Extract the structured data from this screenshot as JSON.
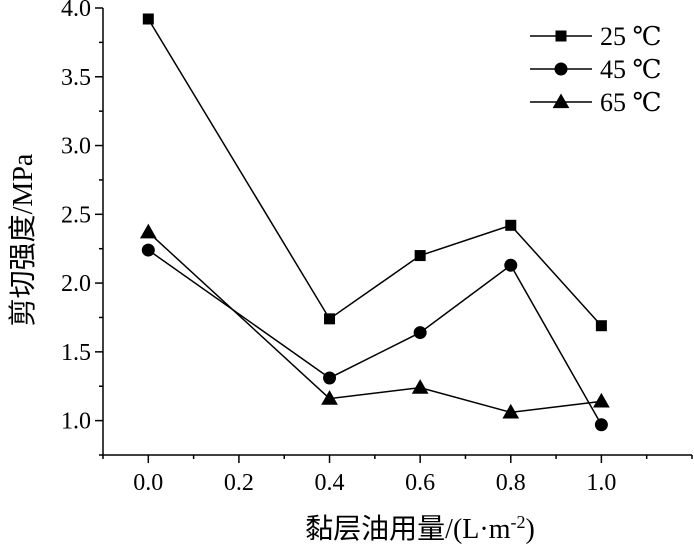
{
  "chart_data": {
    "type": "line",
    "xlabel": "黏层油用量/(L·m",
    "xlabel_sup": "-2",
    "xlabel_suffix": ")",
    "ylabel": "剪切强度/MPa",
    "xlim": [
      -0.1,
      1.2
    ],
    "ylim": [
      0.75,
      4.0
    ],
    "x_ticks": [
      0.0,
      0.2,
      0.4,
      0.6,
      0.8,
      1.0
    ],
    "x_tick_labels": [
      "0.0",
      "0.2",
      "0.4",
      "0.6",
      "0.8",
      "1.0"
    ],
    "y_ticks": [
      1.0,
      1.5,
      2.0,
      2.5,
      3.0,
      3.5,
      4.0
    ],
    "y_tick_labels": [
      "1.0",
      "1.5",
      "2.0",
      "2.5",
      "3.0",
      "3.5",
      "4.0"
    ],
    "legend_position": "top-right",
    "series": [
      {
        "name": "25 ℃",
        "marker": "square",
        "x": [
          0.0,
          0.4,
          0.6,
          0.8,
          1.0
        ],
        "y": [
          3.92,
          1.74,
          2.2,
          2.42,
          1.69
        ]
      },
      {
        "name": "45 ℃",
        "marker": "circle",
        "x": [
          0.0,
          0.4,
          0.6,
          0.8,
          1.0
        ],
        "y": [
          2.24,
          1.31,
          1.64,
          2.13,
          0.97
        ]
      },
      {
        "name": "65 ℃",
        "marker": "triangle",
        "x": [
          0.0,
          0.4,
          0.6,
          0.8,
          1.0
        ],
        "y": [
          2.37,
          1.16,
          1.24,
          1.06,
          1.14
        ]
      }
    ]
  }
}
